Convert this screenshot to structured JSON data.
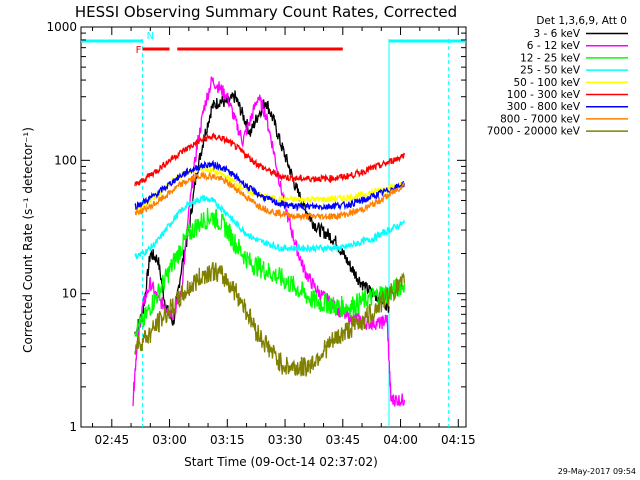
{
  "chart_data": {
    "type": "line",
    "title": "HESSI Observing Summary Count Rates, Corrected",
    "xlabel": "Start Time (09-Oct-14 02:37:02)",
    "ylabel": "Corrected Count Rate (s⁻¹ detector⁻¹)",
    "y_scale": "log",
    "ylim": [
      1,
      1000
    ],
    "x_unit": "minutes after 02:37:02",
    "xlim": [
      0,
      100
    ],
    "x_ticks": [
      {
        "x": 8,
        "label": "02:45"
      },
      {
        "x": 23,
        "label": "03:00"
      },
      {
        "x": 38,
        "label": "03:15"
      },
      {
        "x": 53,
        "label": "03:30"
      },
      {
        "x": 68,
        "label": "03:45"
      },
      {
        "x": 83,
        "label": "04:00"
      },
      {
        "x": 98,
        "label": "04:15"
      }
    ],
    "y_ticks": [
      {
        "y": 1,
        "label": "1"
      },
      {
        "y": 10,
        "label": "10"
      },
      {
        "y": 100,
        "label": "100"
      },
      {
        "y": 1000,
        "label": "1000"
      }
    ],
    "legend_header": "Det 1,3,6,9, Att 0",
    "legend_position": "outside right",
    "flags": [
      {
        "label": "F",
        "color": "#ff0000",
        "segments": [
          [
            16,
            23
          ],
          [
            25,
            68
          ]
        ]
      },
      {
        "label": "N",
        "color": "#00ffff",
        "segments": [
          [
            0,
            16
          ],
          [
            80,
            100
          ]
        ]
      }
    ],
    "markers": [
      {
        "x": 16,
        "style": "dashed",
        "color": "#00ffff"
      },
      {
        "x": 80,
        "style": "solid",
        "color": "#00ffff"
      },
      {
        "x": 95.5,
        "style": "dashed",
        "color": "#00ffff"
      }
    ],
    "series": [
      {
        "name": "3 - 6 keV",
        "color": "#000000",
        "x": [
          14,
          16,
          18,
          20,
          22,
          24,
          26,
          28,
          30,
          32,
          34,
          36,
          38,
          40,
          42,
          44,
          46,
          48,
          50,
          52,
          54,
          56,
          58,
          60,
          62,
          64,
          66,
          68,
          70,
          72,
          74,
          76,
          78,
          80
        ],
        "y": [
          5,
          7,
          20,
          18,
          8,
          6,
          15,
          30,
          80,
          150,
          250,
          280,
          270,
          300,
          220,
          160,
          220,
          280,
          200,
          130,
          90,
          60,
          45,
          35,
          30,
          28,
          25,
          20,
          16,
          13,
          11,
          10,
          9,
          8
        ]
      },
      {
        "name": "6 - 12 keV",
        "color": "#ff00ff",
        "x": [
          13.5,
          14.5,
          16,
          18,
          20,
          22,
          24,
          26,
          28,
          30,
          32,
          34,
          36,
          38,
          40,
          42,
          44,
          46,
          48,
          50,
          52,
          54,
          56,
          58,
          60,
          62,
          64,
          66,
          68,
          70,
          72,
          74,
          76,
          78,
          79.5,
          80.5,
          82,
          84
        ],
        "y": [
          1.6,
          4,
          8,
          12,
          9,
          8,
          7,
          10,
          40,
          120,
          250,
          400,
          350,
          300,
          200,
          140,
          200,
          300,
          220,
          120,
          60,
          35,
          22,
          15,
          12,
          10,
          9,
          8,
          7,
          6.5,
          6.5,
          6,
          6,
          6,
          6.5,
          1.6,
          1.6,
          1.6
        ]
      },
      {
        "name": "12 - 25 keV",
        "color": "#00ff00",
        "x": [
          14,
          16,
          18,
          20,
          22,
          24,
          26,
          28,
          30,
          32,
          34,
          36,
          38,
          40,
          42,
          44,
          46,
          48,
          50,
          52,
          54,
          56,
          58,
          60,
          62,
          64,
          66,
          68,
          70,
          72,
          74,
          76,
          78,
          80,
          82,
          84
        ],
        "y": [
          5.5,
          6,
          8,
          10,
          13,
          17,
          22,
          28,
          32,
          36,
          38,
          35,
          30,
          24,
          20,
          17,
          16,
          15,
          14,
          13,
          12,
          11,
          10,
          9,
          8.5,
          8.5,
          8,
          8,
          8,
          8.5,
          9,
          9.5,
          10,
          10,
          11,
          12
        ]
      },
      {
        "name": "25 - 50 keV",
        "color": "#00ffff",
        "x": [
          14,
          16,
          18,
          20,
          22,
          24,
          26,
          28,
          30,
          32,
          34,
          36,
          38,
          40,
          42,
          44,
          46,
          48,
          50,
          52,
          54,
          56,
          58,
          60,
          62,
          64,
          66,
          68,
          70,
          72,
          74,
          76,
          78,
          80,
          82,
          84
        ],
        "y": [
          19,
          20,
          22,
          25,
          30,
          36,
          42,
          47,
          50,
          52,
          50,
          45,
          40,
          34,
          30,
          27,
          25,
          24,
          23,
          22,
          22,
          22,
          22,
          22,
          22,
          22,
          22,
          22,
          23,
          24,
          25,
          26,
          28,
          30,
          32,
          34
        ]
      },
      {
        "name": "50 - 100 keV",
        "color": "#ffff00",
        "x": [
          14,
          16,
          18,
          20,
          22,
          24,
          26,
          28,
          30,
          32,
          34,
          36,
          38,
          40,
          42,
          44,
          46,
          48,
          50,
          52,
          54,
          56,
          58,
          60,
          62,
          64,
          66,
          68,
          70,
          72,
          74,
          76,
          78,
          80,
          82,
          84
        ],
        "y": [
          42,
          45,
          50,
          55,
          62,
          70,
          77,
          82,
          85,
          86,
          84,
          80,
          74,
          68,
          62,
          58,
          55,
          53,
          52,
          51,
          51,
          51,
          51,
          51,
          51,
          51,
          52,
          52,
          53,
          54,
          56,
          58,
          60,
          62,
          64,
          66
        ]
      },
      {
        "name": "100 - 300 keV",
        "color": "#ff0000",
        "x": [
          14,
          16,
          18,
          20,
          22,
          24,
          26,
          28,
          30,
          32,
          34,
          36,
          38,
          40,
          42,
          44,
          46,
          48,
          50,
          52,
          54,
          56,
          58,
          60,
          62,
          64,
          66,
          68,
          70,
          72,
          74,
          76,
          78,
          80,
          82,
          84
        ],
        "y": [
          65,
          70,
          78,
          85,
          95,
          105,
          115,
          125,
          135,
          145,
          150,
          148,
          140,
          128,
          115,
          103,
          93,
          86,
          80,
          76,
          74,
          73,
          73,
          73,
          73,
          73,
          74,
          75,
          77,
          80,
          84,
          88,
          92,
          97,
          103,
          110
        ]
      },
      {
        "name": "300 - 800 keV",
        "color": "#0000ff",
        "x": [
          14,
          16,
          18,
          20,
          22,
          24,
          26,
          28,
          30,
          32,
          34,
          36,
          38,
          40,
          42,
          44,
          46,
          48,
          50,
          52,
          54,
          56,
          58,
          60,
          62,
          64,
          66,
          68,
          70,
          72,
          74,
          76,
          78,
          80,
          82,
          84
        ],
        "y": [
          45,
          48,
          52,
          57,
          63,
          70,
          77,
          83,
          88,
          92,
          93,
          90,
          84,
          76,
          68,
          61,
          56,
          52,
          49,
          47,
          46,
          45,
          45,
          45,
          45,
          45,
          46,
          46,
          47,
          49,
          51,
          54,
          57,
          60,
          63,
          67
        ]
      },
      {
        "name": "800 - 7000 keV",
        "color": "#ff8000",
        "x": [
          14,
          16,
          18,
          20,
          22,
          24,
          26,
          28,
          30,
          32,
          34,
          36,
          38,
          40,
          42,
          44,
          46,
          48,
          50,
          52,
          54,
          56,
          58,
          60,
          62,
          64,
          66,
          68,
          70,
          72,
          74,
          76,
          78,
          80,
          82,
          84
        ],
        "y": [
          40,
          42,
          45,
          49,
          54,
          60,
          66,
          71,
          75,
          77,
          76,
          73,
          68,
          62,
          56,
          50,
          46,
          43,
          41,
          40,
          39,
          38,
          38,
          38,
          38,
          38,
          38,
          39,
          40,
          42,
          44,
          47,
          51,
          55,
          60,
          66
        ]
      },
      {
        "name": "7000 - 20000 keV",
        "color": "#808000",
        "x": [
          14,
          16,
          18,
          20,
          22,
          24,
          26,
          28,
          30,
          32,
          34,
          36,
          38,
          40,
          42,
          44,
          46,
          48,
          50,
          52,
          54,
          56,
          58,
          60,
          62,
          64,
          66,
          68,
          70,
          72,
          74,
          76,
          78,
          80,
          82,
          84
        ],
        "y": [
          4,
          4.5,
          5,
          6,
          7,
          8,
          9.5,
          11,
          12.5,
          14,
          15,
          14,
          12.5,
          10.5,
          8.5,
          6.5,
          5,
          4.2,
          3.5,
          3,
          2.8,
          2.8,
          2.8,
          3,
          3.5,
          4,
          4.5,
          5,
          5.5,
          6,
          6.5,
          7.5,
          8.5,
          10,
          11,
          12
        ]
      }
    ]
  },
  "footer_stamp": "29-May-2017 09:54"
}
